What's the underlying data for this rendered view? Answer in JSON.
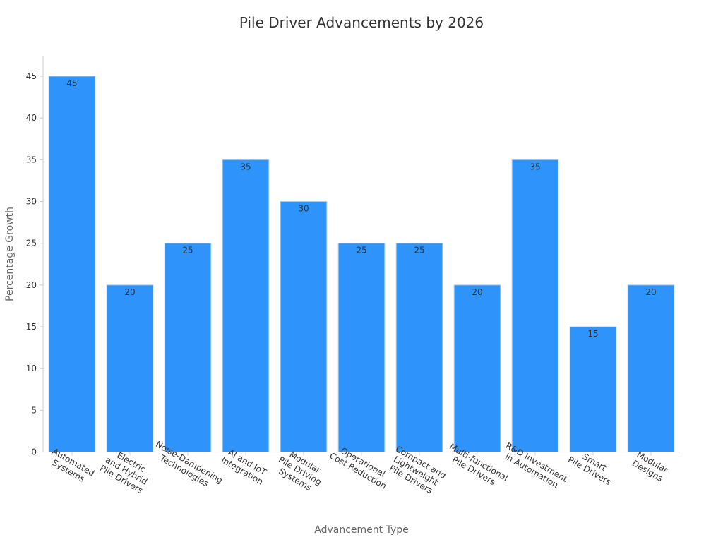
{
  "chart_data": {
    "type": "bar",
    "title": "Pile Driver Advancements by 2026",
    "xlabel": "Advancement Type",
    "ylabel": "Percentage Growth",
    "categories": [
      [
        "Automated",
        "Systems"
      ],
      [
        "Electric",
        "and Hybrid",
        "Pile Drivers"
      ],
      [
        "Noise-Dampening",
        "Technologies"
      ],
      [
        "AI and IoT",
        "Integration"
      ],
      [
        "Modular",
        "Pile Driving",
        "Systems"
      ],
      [
        "Operational",
        "Cost Reduction"
      ],
      [
        "Compact and",
        "Lightweight",
        "Pile Drivers"
      ],
      [
        "Multi-functional",
        "Pile Drivers"
      ],
      [
        "R&D Investment",
        "in Automation"
      ],
      [
        "Smart",
        "Pile Drivers"
      ],
      [
        "Modular",
        "Designs"
      ]
    ],
    "values": [
      45,
      20,
      25,
      35,
      30,
      25,
      25,
      20,
      35,
      15,
      20
    ],
    "ylim": [
      0,
      47
    ],
    "yticks": [
      0,
      5,
      10,
      15,
      20,
      25,
      30,
      35,
      40,
      45
    ],
    "grid": false,
    "bar_color": "#2e93fa",
    "bar_edge_color": "#a9cdf5"
  }
}
